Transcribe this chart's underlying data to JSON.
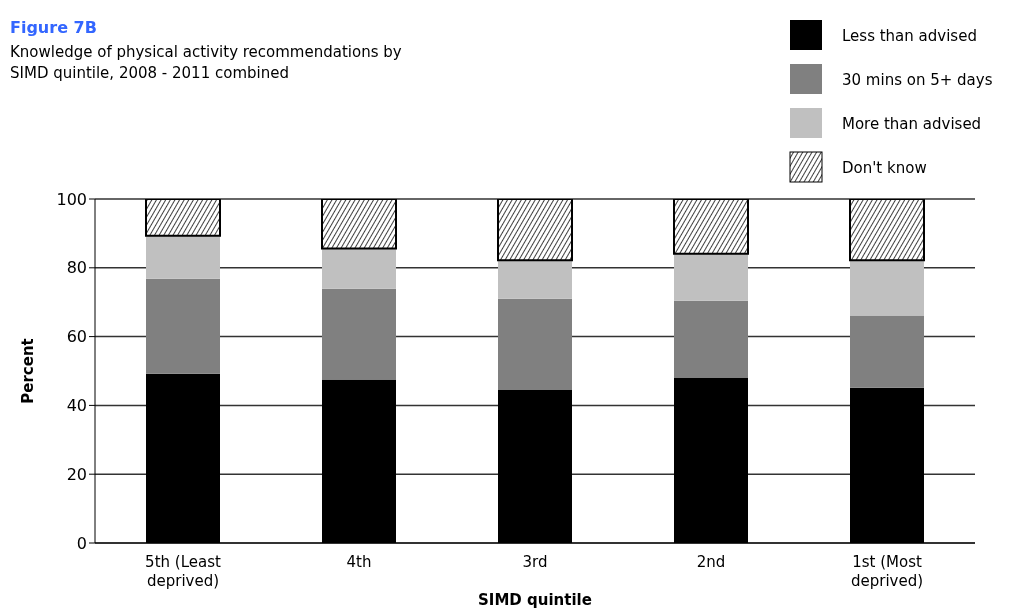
{
  "chart_data": {
    "type": "bar",
    "title": "Figure 7B",
    "subtitle": "Knowledge of physical activity recommendations by SIMD quintile, 2008 - 2011 combined",
    "xlabel": "SIMD quintile",
    "ylabel": "Percent",
    "categories": [
      "5th (Least deprived)",
      "4th",
      "3rd",
      "2nd",
      "1st (Most deprived)"
    ],
    "series": [
      {
        "name": "Less than advised",
        "color": "#000000",
        "values": [
          49.2,
          47.5,
          44.5,
          48.0,
          45.1
        ]
      },
      {
        "name": "30 mins on 5+ days",
        "color": "#808080",
        "values": [
          27.6,
          26.4,
          26.5,
          22.4,
          21.0
        ]
      },
      {
        "name": "More than advised",
        "color": "#c0c0c0",
        "values": [
          12.5,
          11.7,
          11.2,
          13.7,
          16.1
        ]
      },
      {
        "name": "Don't know",
        "color": "#000000",
        "values": [
          10.7,
          14.4,
          17.8,
          15.9,
          17.8
        ]
      }
    ],
    "stacked": true,
    "ylim": [
      0,
      100
    ],
    "yticks": [
      0,
      20,
      40,
      60,
      80,
      100
    ],
    "grid": "y",
    "legend": "top right"
  }
}
